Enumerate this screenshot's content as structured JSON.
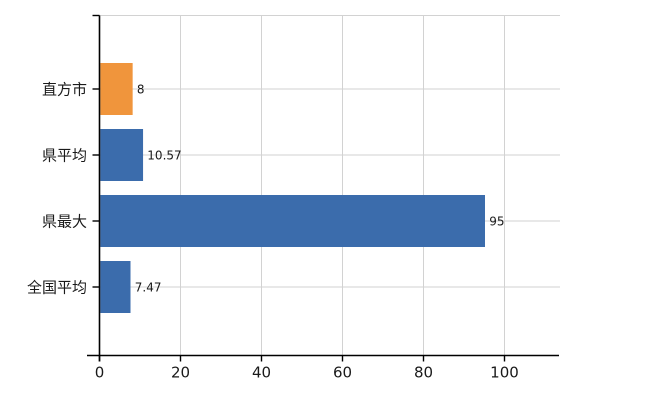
{
  "chart_data": {
    "type": "bar",
    "orientation": "horizontal",
    "title": "",
    "xlabel": "",
    "ylabel": "",
    "categories": [
      "直方市",
      "県平均",
      "県最大",
      "全国平均"
    ],
    "values": [
      8,
      10.57,
      95,
      7.47
    ],
    "value_labels": [
      "8",
      "10.57",
      "95",
      "7.47"
    ],
    "bar_colors": [
      "#f0953c",
      "#3b6cac",
      "#3b6cac",
      "#3b6cac"
    ],
    "x_ticks": [
      0,
      20,
      40,
      60,
      80,
      100
    ],
    "xlim": [
      0,
      113
    ],
    "grid": true,
    "legend": "none",
    "colors": {
      "highlight_bar": "#f0953c",
      "default_bar": "#3b6cac",
      "grid_line": "#d2d2d2",
      "axis_line": "#000000",
      "text": "#1a1a1a",
      "background": "#ffffff"
    }
  }
}
